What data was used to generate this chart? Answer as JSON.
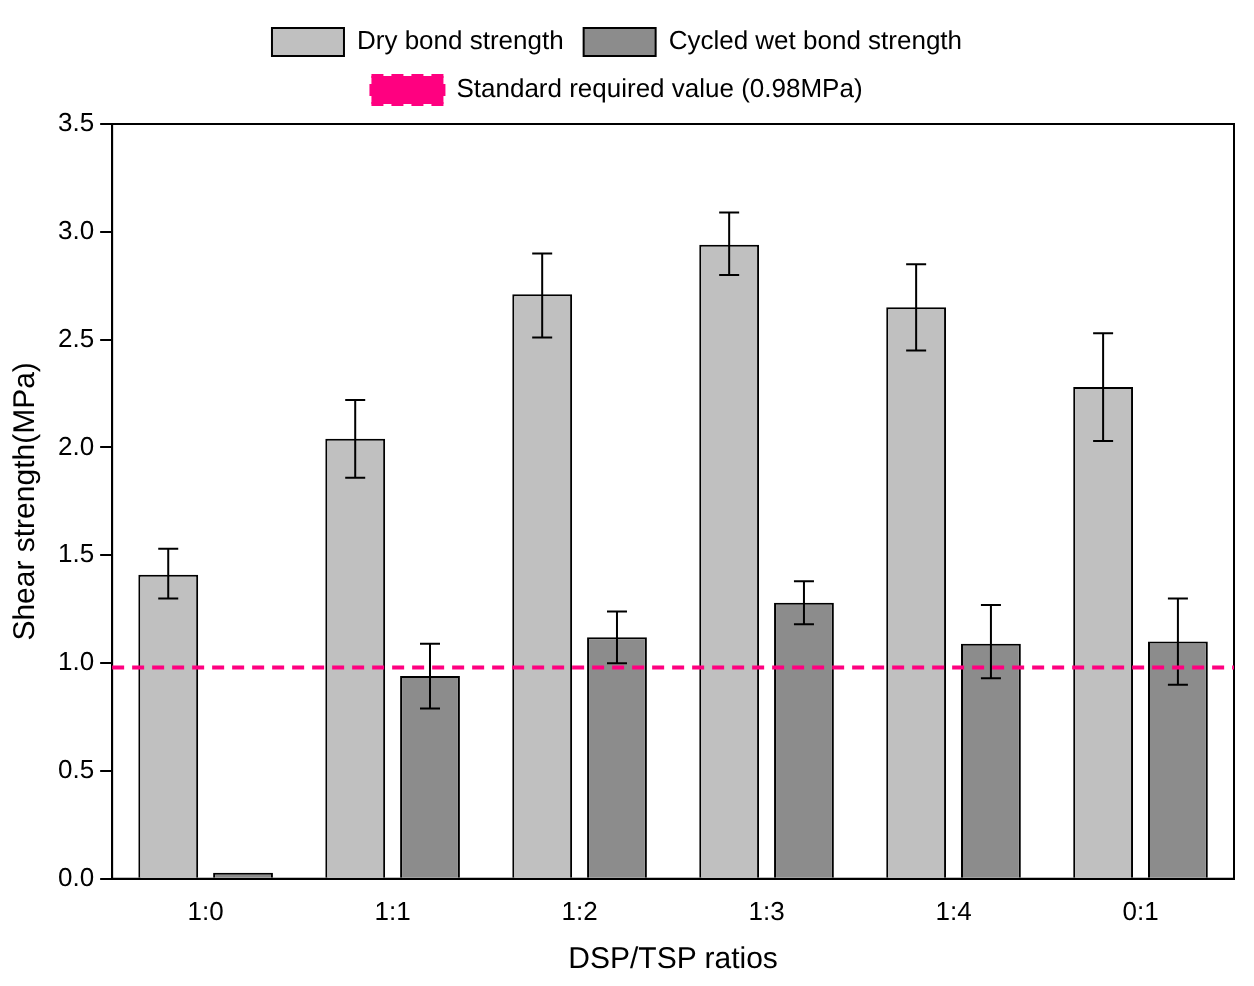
{
  "chart_data": {
    "type": "bar",
    "xlabel": "DSP/TSP ratios",
    "ylabel": "Shear strength(MPa)",
    "categories": [
      "1:0",
      "1:1",
      "1:2",
      "1:3",
      "1:4",
      "0:1"
    ],
    "series": [
      {
        "name": "Dry bond strength",
        "color": "#c0c0c0",
        "values": [
          1.41,
          2.04,
          2.71,
          2.94,
          2.65,
          2.28
        ],
        "errors": [
          [
            1.3,
            1.53
          ],
          [
            1.86,
            2.22
          ],
          [
            2.51,
            2.9
          ],
          [
            2.8,
            3.09
          ],
          [
            2.45,
            2.85
          ],
          [
            2.03,
            2.53
          ]
        ]
      },
      {
        "name": "Cycled wet bond strength",
        "color": "#8c8c8c",
        "values": [
          0.01,
          0.94,
          1.12,
          1.28,
          1.09,
          1.1
        ],
        "errors": [
          null,
          [
            0.79,
            1.09
          ],
          [
            1.0,
            1.24
          ],
          [
            1.18,
            1.38
          ],
          [
            0.93,
            1.27
          ],
          [
            0.9,
            1.3
          ]
        ]
      }
    ],
    "ylim": [
      0,
      3.5
    ],
    "yticks": [
      {
        "value": 0,
        "label": "0.0"
      },
      0.5,
      {
        "value": 1,
        "label": "1.0"
      },
      1.5,
      {
        "value": 2,
        "label": "2.0"
      },
      2.5,
      {
        "value": 3,
        "label": "3.0"
      },
      3.5
    ],
    "ref_lines": [
      {
        "axis": "y",
        "value": 0.98,
        "label": "Standard required value (0.98MPa)",
        "color": "#ff0080",
        "line_style": "dashed"
      }
    ],
    "legend": "top",
    "grid": false
  }
}
